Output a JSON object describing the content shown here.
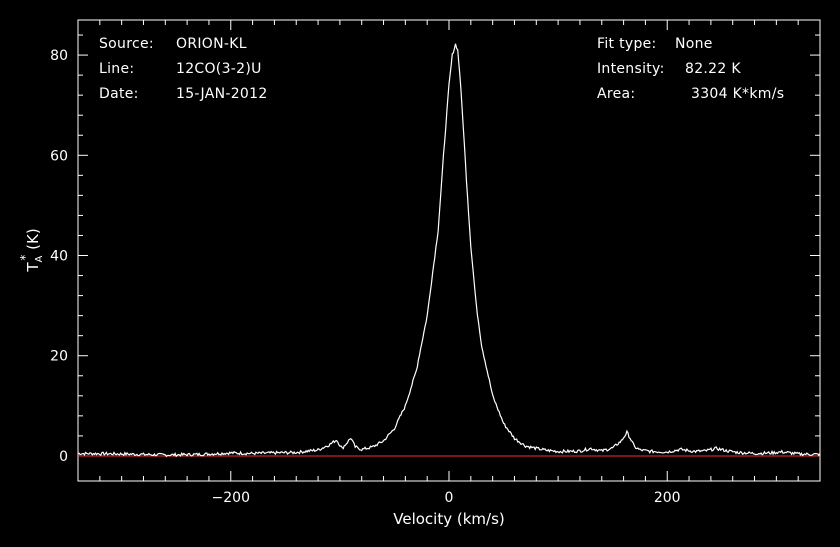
{
  "header_left": [
    {
      "key": "Source:",
      "value": "ORION-KL"
    },
    {
      "key": "Line:",
      "value": "12CO(3-2)U"
    },
    {
      "key": "Date:",
      "value": "15-JAN-2012"
    }
  ],
  "header_right": [
    {
      "key": "Fit type:",
      "value": "None"
    },
    {
      "key": "Intensity:",
      "value": "82.22 K"
    },
    {
      "key": "Area:",
      "value": "3304 K*km/s"
    }
  ],
  "colors": {
    "background": "#000000",
    "axes": "#ffffff",
    "trace": "#ffffff",
    "baseline": "#ff2a2a"
  },
  "chart_data": {
    "type": "line",
    "xlabel": "Velocity (km/s)",
    "ylabel": "T",
    "ylabel_sub": "A",
    "ylabel_sup": "*",
    "ylabel_unit": " (K)",
    "xlim": [
      -340,
      340
    ],
    "ylim": [
      -5,
      87
    ],
    "x_ticks": [
      -200,
      0,
      200
    ],
    "y_ticks": [
      0,
      20,
      40,
      60,
      80
    ],
    "baseline_y": 0,
    "series": [
      {
        "x": [
          -340,
          -300,
          -260,
          -230,
          -200,
          -180,
          -160,
          -140,
          -120,
          -110,
          -103,
          -98,
          -94,
          -90,
          -86,
          -80,
          -70,
          -60,
          -50,
          -40,
          -30,
          -20,
          -10,
          -5,
          0,
          3,
          6,
          8,
          10,
          13,
          16,
          20,
          25,
          30,
          40,
          50,
          60,
          70,
          80,
          90,
          100,
          110,
          120,
          130,
          140,
          150,
          158,
          163,
          166,
          170,
          175,
          185,
          200,
          212,
          225,
          235,
          245,
          255,
          265,
          280,
          295,
          305,
          320,
          340
        ],
        "y": [
          0.5,
          0.4,
          0.2,
          0.3,
          0.6,
          0.5,
          0.6,
          0.7,
          1.2,
          2.2,
          3.2,
          1.5,
          2.5,
          3.6,
          1.8,
          1.3,
          1.8,
          3,
          5.5,
          10,
          17,
          28,
          45,
          60,
          74,
          80,
          82.2,
          81,
          76,
          66,
          55,
          42,
          30,
          22,
          12,
          6.5,
          3.5,
          2,
          1.5,
          1.1,
          0.9,
          0.9,
          1,
          1.5,
          1,
          1.6,
          3,
          4.7,
          3.6,
          1.8,
          1.2,
          0.9,
          0.8,
          1.3,
          0.9,
          1,
          1.5,
          1,
          0.7,
          0.5,
          0.6,
          0.8,
          0.4,
          0.3
        ]
      }
    ]
  }
}
